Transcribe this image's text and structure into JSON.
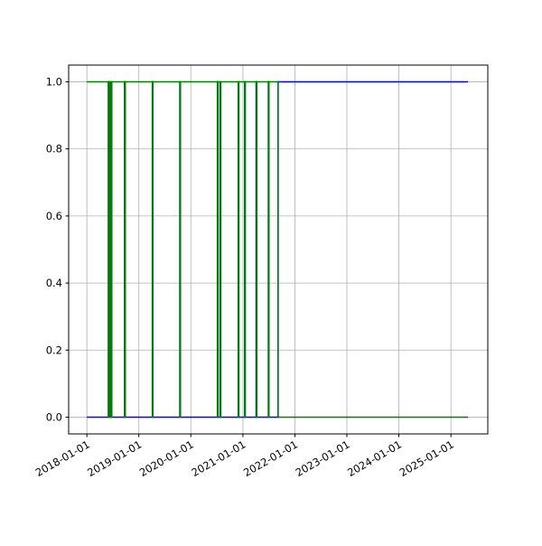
{
  "chart_data": {
    "type": "line",
    "step": "post",
    "x": [
      "2018-01-01",
      "2018-06-01",
      "2018-06-10",
      "2018-06-15",
      "2018-06-25",
      "2018-09-22",
      "2018-09-27",
      "2019-04-06",
      "2019-04-10",
      "2019-10-16",
      "2019-10-20",
      "2020-07-06",
      "2020-07-10",
      "2020-07-25",
      "2020-07-29",
      "2020-11-29",
      "2020-12-03",
      "2021-01-13",
      "2021-01-17",
      "2021-04-04",
      "2021-04-08",
      "2021-06-29",
      "2021-07-03",
      "2021-09-05",
      "2025-05-01"
    ],
    "series": [
      {
        "color": "#0000ff",
        "values": [
          0,
          1,
          0,
          1,
          0,
          1,
          0,
          1,
          0,
          1,
          0,
          1,
          0,
          1,
          0,
          1,
          0,
          1,
          0,
          1,
          0,
          1,
          0,
          1,
          1
        ]
      },
      {
        "color": "#008000",
        "values": [
          1,
          0,
          1,
          0,
          1,
          0,
          1,
          0,
          1,
          0,
          1,
          0,
          1,
          0,
          1,
          0,
          1,
          0,
          1,
          0,
          1,
          0,
          1,
          0,
          0
        ]
      }
    ],
    "xlim": [
      "2017-08-26",
      "2025-09-17"
    ],
    "xticks": [
      "2018-01-01",
      "2019-01-01",
      "2020-01-01",
      "2021-01-01",
      "2022-01-01",
      "2023-01-01",
      "2024-01-01",
      "2025-01-01"
    ],
    "ylim": [
      -0.05,
      1.05
    ],
    "yticks": [
      {
        "value": 0,
        "label": "0.0"
      },
      0.2,
      0.4,
      0.6,
      0.8,
      {
        "value": 1,
        "label": "1.0"
      }
    ],
    "grid": true
  }
}
